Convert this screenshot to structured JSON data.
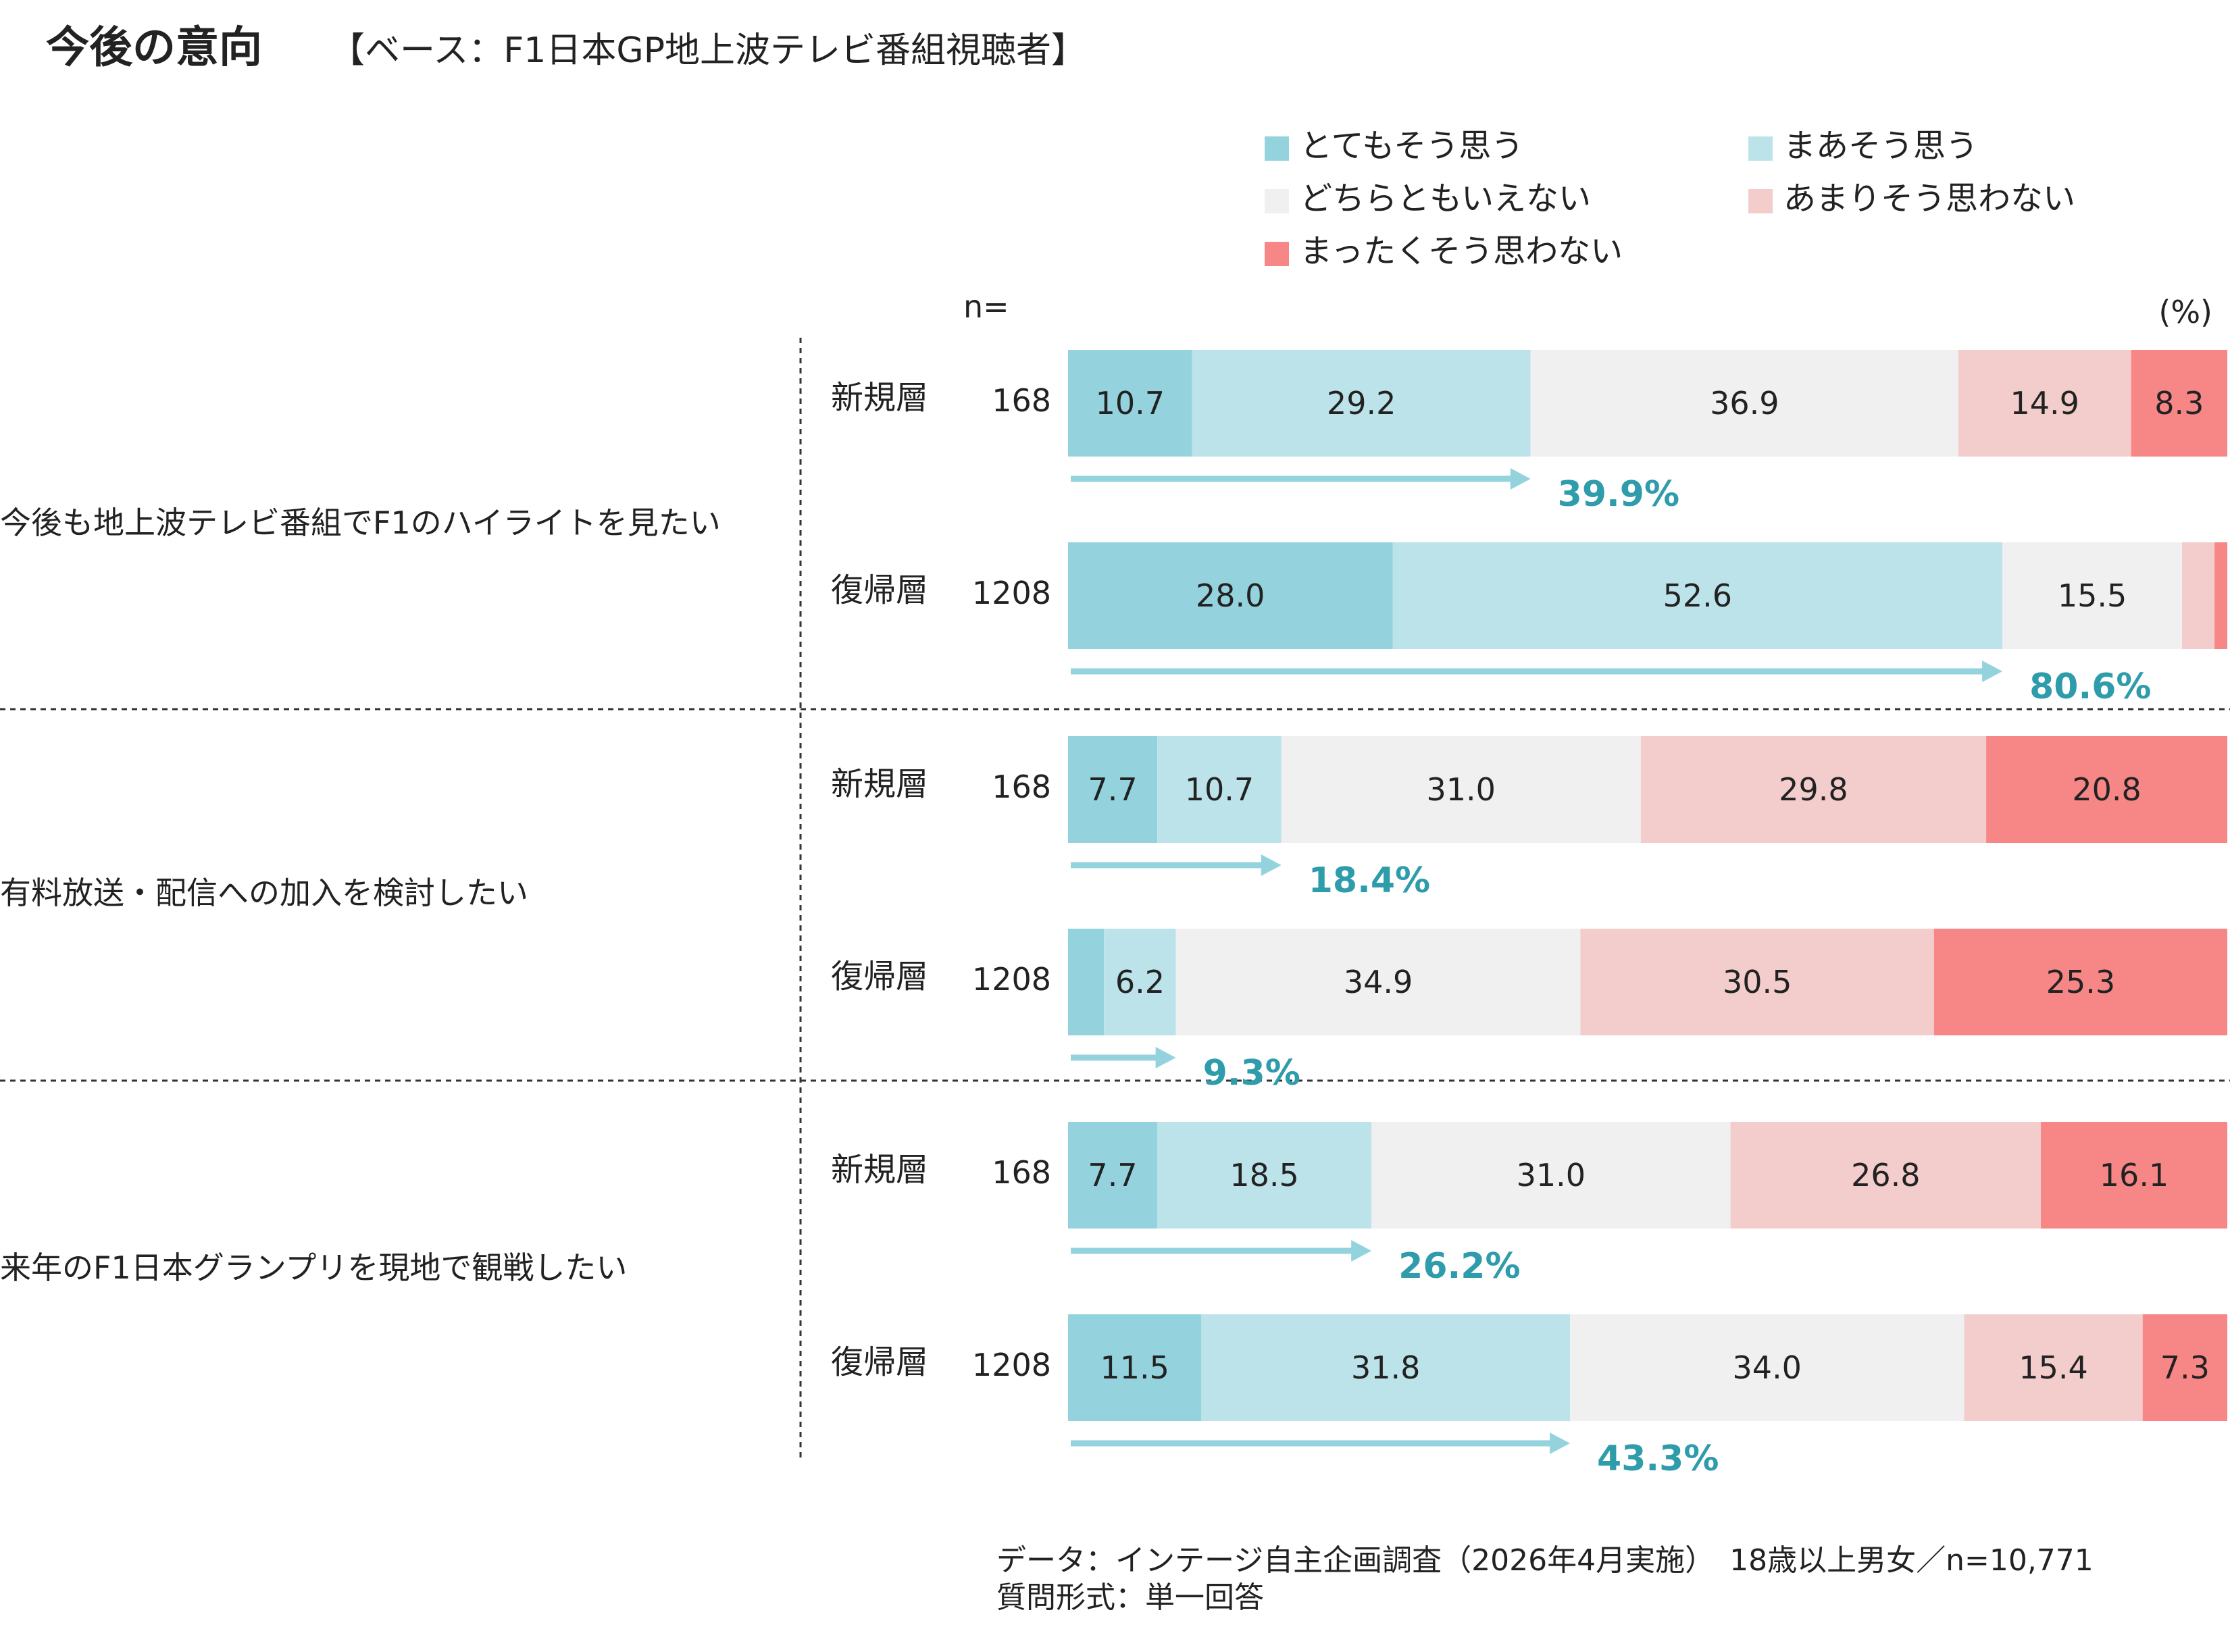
{
  "title": "今後の意向",
  "subtitle": "【ベース：F1日本GP地上波テレビ番組視聴者】",
  "n_label": "n=",
  "unit_label": "(%)",
  "colors": {
    "strongly_agree": "#94d3de",
    "somewhat_agree": "#bde3ea",
    "neutral": "#f0f0f0",
    "somewhat_disagree": "#f3cccc",
    "strongly_disagree": "#f78787",
    "cumulative": "#2e9caa",
    "arrow": "#94d3de"
  },
  "chart_data": {
    "type": "bar",
    "orientation": "horizontal",
    "stacked": true,
    "percent_scale": [
      0,
      100
    ],
    "legend": [
      "とてもそう思う",
      "まあそう思う",
      "どちらともいえない",
      "あまりそう思わない",
      "まったくそう思わない"
    ],
    "groups": [
      {
        "label": "今後も地上波テレビ番組でF1のハイライトを見たい",
        "rows": [
          {
            "segment": "新規層",
            "n": "168",
            "values": [
              10.7,
              29.2,
              36.9,
              14.9,
              8.3
            ],
            "labels": [
              "10.7",
              "29.2",
              "36.9",
              "14.9",
              "8.3"
            ],
            "cumulative": "39.9%"
          },
          {
            "segment": "復帰層",
            "n": "1208",
            "values": [
              28.0,
              52.6,
              15.5,
              2.8,
              1.1
            ],
            "labels": [
              "28.0",
              "52.6",
              "15.5",
              "",
              ""
            ],
            "cumulative": "80.6%"
          }
        ]
      },
      {
        "label": "有料放送・配信への加入を検討したい",
        "rows": [
          {
            "segment": "新規層",
            "n": "168",
            "values": [
              7.7,
              10.7,
              31.0,
              29.8,
              20.8
            ],
            "labels": [
              "7.7",
              "10.7",
              "31.0",
              "29.8",
              "20.8"
            ],
            "cumulative": "18.4%"
          },
          {
            "segment": "復帰層",
            "n": "1208",
            "values": [
              3.1,
              6.2,
              34.9,
              30.5,
              25.3
            ],
            "labels": [
              "",
              "6.2",
              "34.9",
              "30.5",
              "25.3"
            ],
            "cumulative": "9.3%"
          }
        ]
      },
      {
        "label": "来年のF1日本グランプリを現地で観戦したい",
        "rows": [
          {
            "segment": "新規層",
            "n": "168",
            "values": [
              7.7,
              18.5,
              31.0,
              26.8,
              16.1
            ],
            "labels": [
              "7.7",
              "18.5",
              "31.0",
              "26.8",
              "16.1"
            ],
            "cumulative": "26.2%"
          },
          {
            "segment": "復帰層",
            "n": "1208",
            "values": [
              11.5,
              31.8,
              34.0,
              15.4,
              7.3
            ],
            "labels": [
              "11.5",
              "31.8",
              "34.0",
              "15.4",
              "7.3"
            ],
            "cumulative": "43.3%"
          }
        ]
      }
    ]
  },
  "footnote": {
    "line1": "データ：インテージ自主企画調査（2026年4月実施）　18歳以上男女／n=10,771",
    "line2": "質問形式：単一回答"
  }
}
